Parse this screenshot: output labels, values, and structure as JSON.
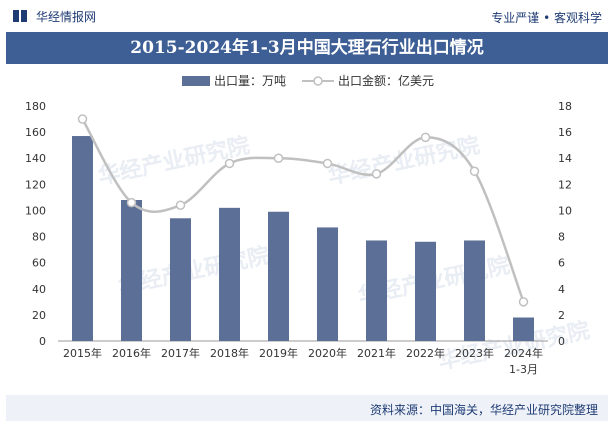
{
  "header": {
    "brand": "华经情报网",
    "slogan": "专业严谨 • 客观科学",
    "title": "2015-2024年1-3月中国大理石行业出口情况"
  },
  "watermark": "华经产业研究院",
  "source": "资料来源：中国海关，华经产业研究院整理",
  "colors": {
    "bar": "#5b6f97",
    "line": "#c0c0c0",
    "marker_fill": "#ffffff",
    "title_band": "#3e5f96",
    "brand": "#1f3b73"
  },
  "chart_data": {
    "type": "bar",
    "categories": [
      "2015年",
      "2016年",
      "2017年",
      "2018年",
      "2019年",
      "2020年",
      "2021年",
      "2022年",
      "2023年",
      "2024年\n1-3月"
    ],
    "series": [
      {
        "name": "出口量：万吨",
        "type": "bar",
        "axis": "left",
        "values": [
          157,
          108,
          94,
          102,
          99,
          87,
          77,
          76,
          77,
          18
        ]
      },
      {
        "name": "出口金额：亿美元",
        "type": "line",
        "axis": "right",
        "values": [
          17.0,
          10.6,
          10.4,
          13.6,
          14.0,
          13.6,
          12.8,
          15.6,
          13.0,
          3.0
        ]
      }
    ],
    "y_left": {
      "min": 0,
      "max": 180,
      "ticks": [
        0,
        20,
        40,
        60,
        80,
        100,
        120,
        140,
        160,
        180
      ]
    },
    "y_right": {
      "min": 0,
      "max": 18,
      "ticks": [
        0,
        2,
        4,
        6,
        8,
        10,
        12,
        14,
        16,
        18
      ]
    },
    "legend_position": "top-center",
    "grid": false
  }
}
